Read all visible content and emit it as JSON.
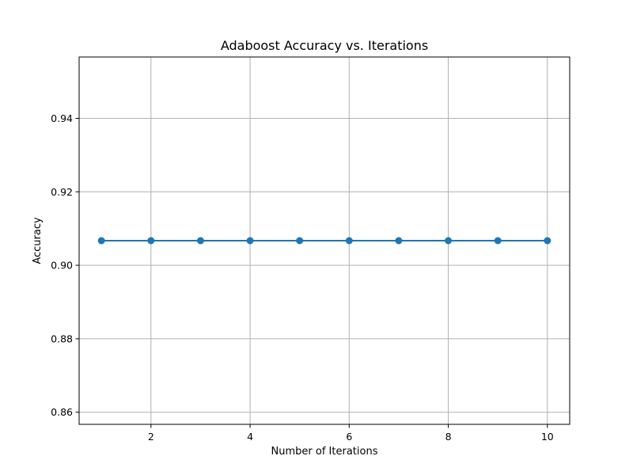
{
  "chart_data": {
    "type": "line",
    "title": "Adaboost Accuracy vs. Iterations",
    "xlabel": "Number of Iterations",
    "ylabel": "Accuracy",
    "x": [
      1,
      2,
      3,
      4,
      5,
      6,
      7,
      8,
      9,
      10
    ],
    "series": [
      {
        "values": [
          0.9067,
          0.9067,
          0.9067,
          0.9067,
          0.9067,
          0.9067,
          0.9067,
          0.9067,
          0.9067,
          0.9067
        ],
        "color": "#1f77b4",
        "marker": "circle"
      }
    ],
    "xlim": [
      0.55,
      10.45
    ],
    "ylim": [
      0.8567,
      0.9567
    ],
    "xticks": [
      2,
      4,
      6,
      8,
      10
    ],
    "xtick_labels": [
      "2",
      "4",
      "6",
      "8",
      "10"
    ],
    "yticks": [
      0.86,
      0.88,
      0.9,
      0.92,
      0.94
    ],
    "ytick_labels": [
      "0.86",
      "0.88",
      "0.90",
      "0.92",
      "0.94"
    ],
    "grid": true,
    "grid_color": "#b0b0b0",
    "axis_color": "#000000"
  }
}
